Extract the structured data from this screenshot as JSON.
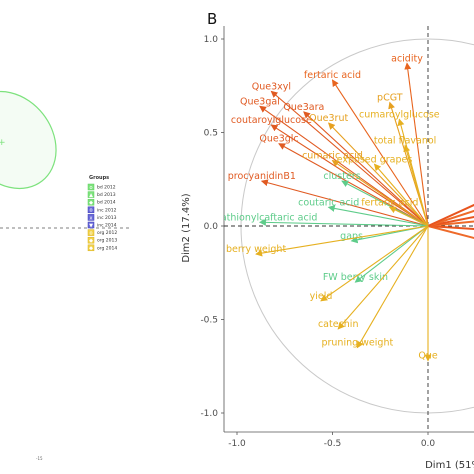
{
  "left_panel": {
    "legend": {
      "title": "Groups",
      "items": [
        {
          "label": "bd 2012",
          "fill": "#7de27d",
          "border": "#5fcf5f",
          "glyph": "o"
        },
        {
          "label": "bd 2013",
          "fill": "#7de27d",
          "border": "#5fcf5f",
          "glyph": "▲"
        },
        {
          "label": "bd 2014",
          "fill": "#7de27d",
          "border": "#5fcf5f",
          "glyph": "◆"
        },
        {
          "label": "inc 2012",
          "fill": "#6a6ad8",
          "border": "#3b3bb8",
          "glyph": "o"
        },
        {
          "label": "inc 2013",
          "fill": "#6a6ad8",
          "border": "#3b3bb8",
          "glyph": "x"
        },
        {
          "label": "inc 2014",
          "fill": "#6a6ad8",
          "border": "#3b3bb8",
          "glyph": "▼"
        },
        {
          "label": "org 2012",
          "fill": "#f2d24a",
          "border": "#d9b21f",
          "glyph": "o"
        },
        {
          "label": "org 2013",
          "fill": "#f2d24a",
          "border": "#d9b21f",
          "glyph": "◆"
        },
        {
          "label": "org 2014",
          "fill": "#f2d24a",
          "border": "#d9b21f",
          "glyph": "◆"
        }
      ]
    },
    "ellipse_color": "#7de27d",
    "corner_tick": "-15"
  },
  "chart_data": {
    "type": "scatter",
    "panel_label": "B",
    "xlabel": "Dim1 (51%)",
    "ylabel": "Dim2 (17.4%)",
    "xlim": [
      -1.05,
      0.25
    ],
    "ylim": [
      -1.1,
      1.02
    ],
    "x_ticks": [
      -1.0,
      -0.5,
      0.0
    ],
    "x_tick_labels": [
      "-1.0",
      "-0.5",
      "0.0"
    ],
    "y_ticks": [
      -1.0,
      -0.5,
      0.0,
      0.5,
      1.0
    ],
    "y_tick_labels": [
      "-1.0",
      "-0.5",
      "0.0",
      "0.5",
      "1.0"
    ],
    "grid": false,
    "unit_circle": true,
    "reference_lines": {
      "x": 0,
      "y": 0
    },
    "colors": {
      "high": "#e8541e",
      "mid": "#e6b020",
      "low": "#5ecc8a"
    },
    "variables": [
      {
        "label": "acidity",
        "x": -0.11,
        "y": 0.87,
        "color": "#e8641e"
      },
      {
        "label": "fertaric acid",
        "x": -0.5,
        "y": 0.78,
        "color": "#e8641e"
      },
      {
        "label": "Que3xyl",
        "x": -0.82,
        "y": 0.72,
        "color": "#e05a22"
      },
      {
        "label": "Que3gal",
        "x": -0.88,
        "y": 0.64,
        "color": "#e05a22"
      },
      {
        "label": "Que3ara",
        "x": -0.65,
        "y": 0.61,
        "color": "#e05a22"
      },
      {
        "label": "pCGT",
        "x": -0.2,
        "y": 0.66,
        "color": "#e6a020"
      },
      {
        "label": "coutaroylglucose",
        "x": -0.82,
        "y": 0.54,
        "color": "#e05a22"
      },
      {
        "label": "Que3rut",
        "x": -0.52,
        "y": 0.55,
        "color": "#e6a020"
      },
      {
        "label": "cumaroylglucose",
        "x": -0.15,
        "y": 0.57,
        "color": "#e6b020"
      },
      {
        "label": "Que3glc",
        "x": -0.78,
        "y": 0.44,
        "color": "#e05a22"
      },
      {
        "label": "total flavanol",
        "x": -0.12,
        "y": 0.43,
        "color": "#e6b020"
      },
      {
        "label": "cumaric acid",
        "x": -0.5,
        "y": 0.35,
        "color": "#e6a020"
      },
      {
        "label": "exposed grapes",
        "x": -0.28,
        "y": 0.33,
        "color": "#e6b020"
      },
      {
        "label": "procyanidinB1",
        "x": -0.87,
        "y": 0.24,
        "color": "#e05a22"
      },
      {
        "label": "clusters",
        "x": -0.45,
        "y": 0.24,
        "color": "#5ecc8a"
      },
      {
        "label": "coutaric acid",
        "x": -0.52,
        "y": 0.1,
        "color": "#5ecc8a"
      },
      {
        "label": "fertaric acid",
        "x": -0.2,
        "y": 0.1,
        "color": "#e6b020"
      },
      {
        "label": "glutathionylcaftaric acid",
        "x": -0.88,
        "y": 0.02,
        "color": "#5ecc8a"
      },
      {
        "label": "gaps",
        "x": -0.4,
        "y": -0.08,
        "color": "#5ecc8a"
      },
      {
        "label": "berry weight",
        "x": -0.9,
        "y": -0.15,
        "color": "#e6b020"
      },
      {
        "label": "FW berry skin",
        "x": -0.38,
        "y": -0.3,
        "color": "#5ecc8a"
      },
      {
        "label": "yield",
        "x": -0.56,
        "y": -0.4,
        "color": "#e6b020"
      },
      {
        "label": "catechin",
        "x": -0.47,
        "y": -0.55,
        "color": "#e6b020"
      },
      {
        "label": "pruning weight",
        "x": -0.37,
        "y": -0.65,
        "color": "#e6b020"
      },
      {
        "label": "Que",
        "x": 0.0,
        "y": -0.72,
        "color": "#e6b020"
      }
    ]
  }
}
